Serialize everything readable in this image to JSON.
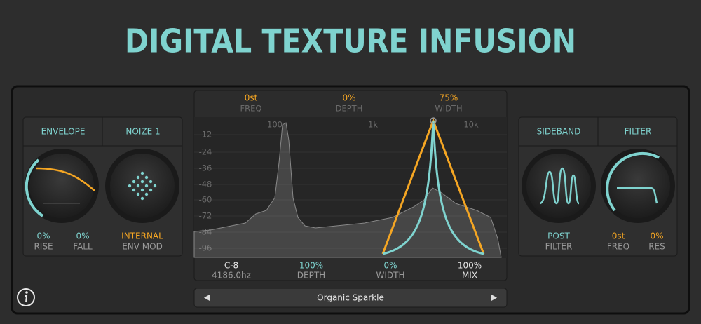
{
  "title": "DIGITAL TEXTURE INFUSION",
  "left_panel": {
    "tabs": [
      "ENVELOPE",
      "NOIZE 1"
    ],
    "controls": [
      {
        "value": "0%",
        "label": "RISE"
      },
      {
        "value": "0%",
        "label": "FALL"
      },
      {
        "value": "INTERNAL",
        "label": "ENV MOD"
      }
    ]
  },
  "spectrum": {
    "top_controls": [
      {
        "value": "0st",
        "label": "FREQ"
      },
      {
        "value": "0%",
        "label": "DEPTH"
      },
      {
        "value": "75%",
        "label": "WIDTH"
      }
    ],
    "y_labels": [
      "-12",
      "-24",
      "-36",
      "-48",
      "-60",
      "-72",
      "-84",
      "-96"
    ],
    "x_labels": [
      "100",
      "1k",
      "10k"
    ],
    "bottom_controls": [
      {
        "value": "C-8",
        "label": "4186.0hz"
      },
      {
        "value": "100%",
        "label": "DEPTH"
      },
      {
        "value": "0%",
        "label": "WIDTH"
      },
      {
        "value": "100%",
        "label": "MIX"
      }
    ]
  },
  "preset": {
    "name": "Organic Sparkle"
  },
  "right_panel": {
    "tabs": [
      "SIDEBAND",
      "FILTER"
    ],
    "controls": [
      {
        "value": "POST",
        "label": "FILTER"
      },
      {
        "value": "0st",
        "label": "FREQ"
      },
      {
        "value": "0%",
        "label": "RES"
      }
    ]
  }
}
